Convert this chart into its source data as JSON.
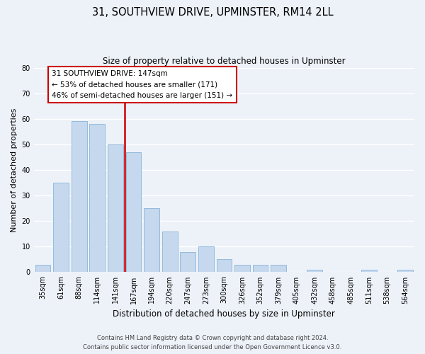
{
  "title": "31, SOUTHVIEW DRIVE, UPMINSTER, RM14 2LL",
  "subtitle": "Size of property relative to detached houses in Upminster",
  "xlabel": "Distribution of detached houses by size in Upminster",
  "ylabel": "Number of detached properties",
  "bar_color": "#c5d8ee",
  "bar_edge_color": "#8ab4d8",
  "vline_color": "#cc0000",
  "vline_x_index": 4,
  "categories": [
    "35sqm",
    "61sqm",
    "88sqm",
    "114sqm",
    "141sqm",
    "167sqm",
    "194sqm",
    "220sqm",
    "247sqm",
    "273sqm",
    "300sqm",
    "326sqm",
    "352sqm",
    "379sqm",
    "405sqm",
    "432sqm",
    "458sqm",
    "485sqm",
    "511sqm",
    "538sqm",
    "564sqm"
  ],
  "values": [
    3,
    35,
    59,
    58,
    50,
    47,
    25,
    16,
    8,
    10,
    5,
    3,
    3,
    3,
    0,
    1,
    0,
    0,
    1,
    0,
    1
  ],
  "ylim": [
    0,
    80
  ],
  "yticks": [
    0,
    10,
    20,
    30,
    40,
    50,
    60,
    70,
    80
  ],
  "annotation_title": "31 SOUTHVIEW DRIVE: 147sqm",
  "annotation_line1": "← 53% of detached houses are smaller (171)",
  "annotation_line2": "46% of semi-detached houses are larger (151) →",
  "annotation_box_color": "white",
  "annotation_box_edge_color": "#cc0000",
  "footnote1": "Contains HM Land Registry data © Crown copyright and database right 2024.",
  "footnote2": "Contains public sector information licensed under the Open Government Licence v3.0.",
  "background_color": "#edf2f9",
  "grid_color": "white",
  "title_fontsize": 10.5,
  "subtitle_fontsize": 8.5,
  "ylabel_fontsize": 8,
  "xlabel_fontsize": 8.5,
  "tick_fontsize": 7,
  "annotation_fontsize": 7.5,
  "footnote_fontsize": 6
}
